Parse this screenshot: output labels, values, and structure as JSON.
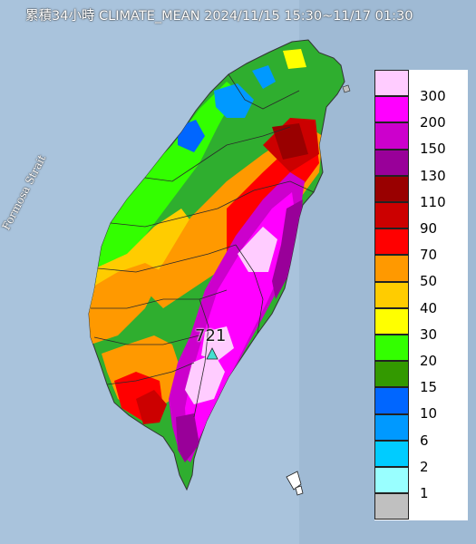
{
  "title": "累積34小時 CLIMATE_MEAN 2024/11/15 15:30~11/17 01:30",
  "strait_label": "Formosa Strait",
  "max_value_label": "721",
  "legend": [
    {
      "label": "300",
      "color": "#ffccff"
    },
    {
      "label": "200",
      "color": "#ff00ff"
    },
    {
      "label": "150",
      "color": "#cc00cc"
    },
    {
      "label": "130",
      "color": "#990099"
    },
    {
      "label": "110",
      "color": "#990000"
    },
    {
      "label": "90",
      "color": "#cc0000"
    },
    {
      "label": "70",
      "color": "#ff0000"
    },
    {
      "label": "50",
      "color": "#ff9900"
    },
    {
      "label": "40",
      "color": "#ffcc00"
    },
    {
      "label": "30",
      "color": "#ffff00"
    },
    {
      "label": "20",
      "color": "#33ff00"
    },
    {
      "label": "15",
      "color": "#339900"
    },
    {
      "label": "10",
      "color": "#0066ff"
    },
    {
      "label": "6",
      "color": "#0099ff"
    },
    {
      "label": "2",
      "color": "#00ccff"
    },
    {
      "label": "1",
      "color": "#99ffff"
    },
    {
      "label": "",
      "color": "#c0c0c0"
    }
  ]
}
